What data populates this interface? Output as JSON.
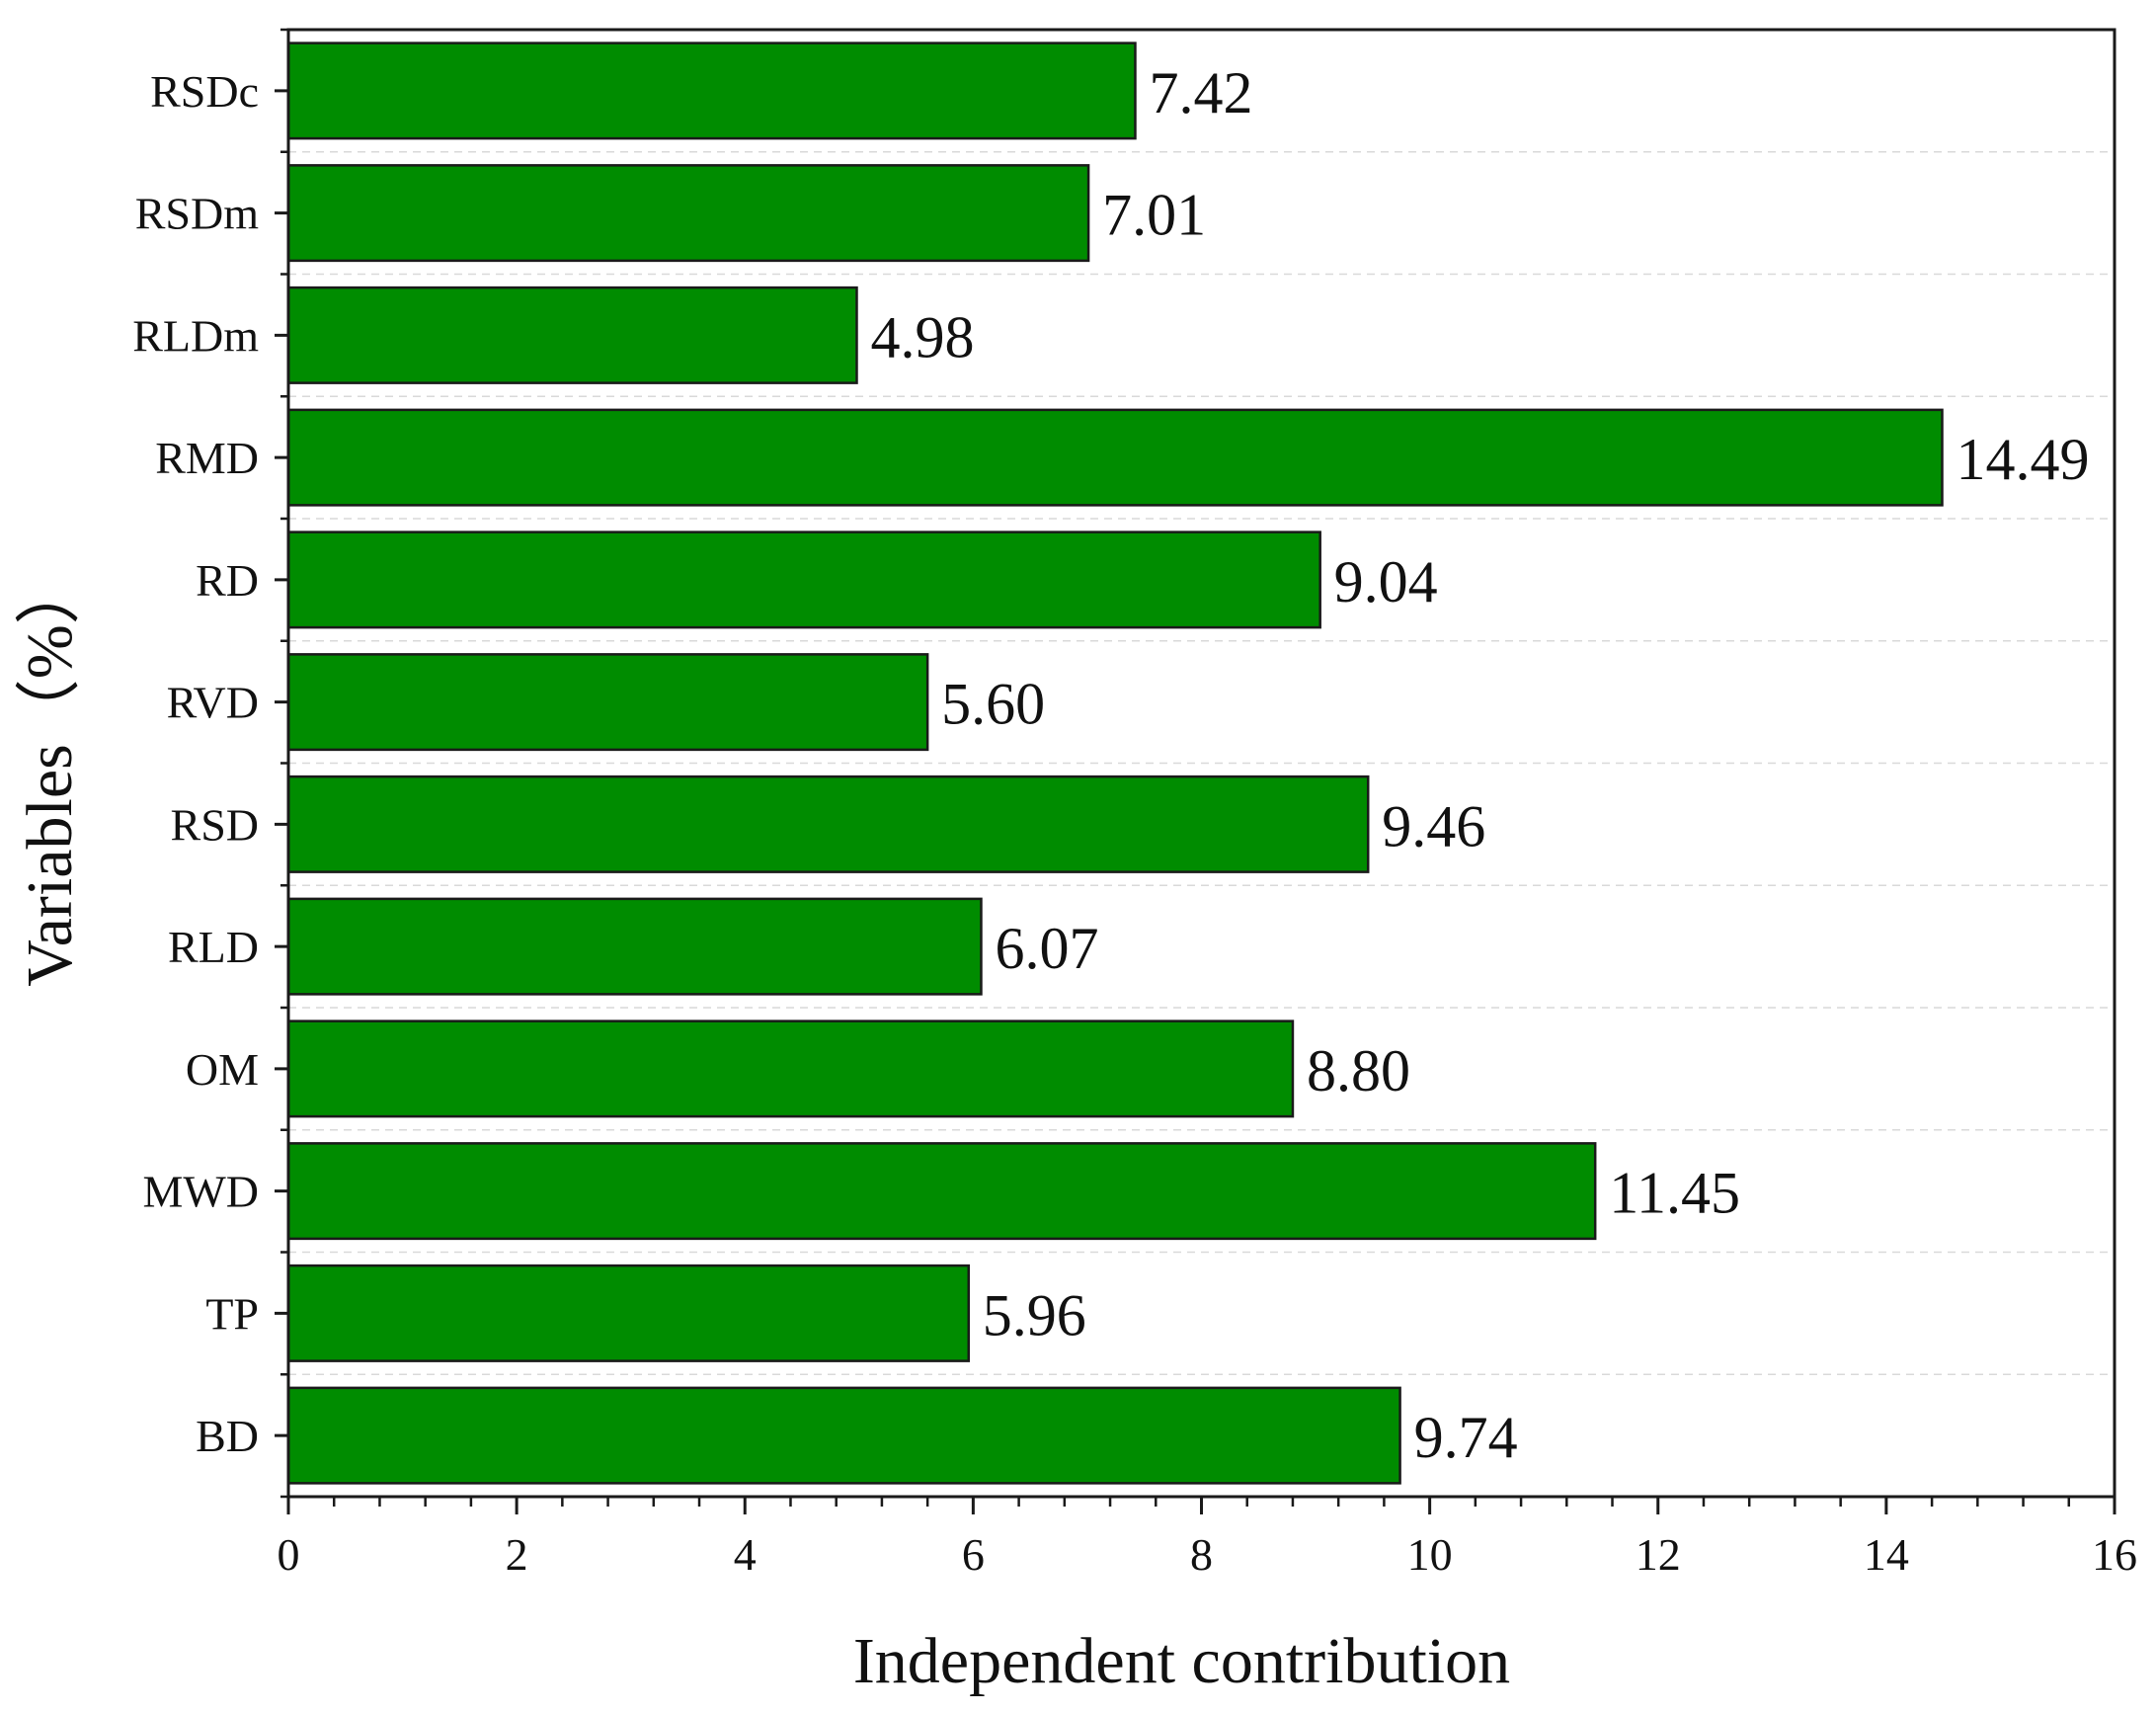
{
  "chart_data": {
    "type": "bar",
    "orientation": "horizontal",
    "categories": [
      "BD",
      "TP",
      "MWD",
      "OM",
      "RLD",
      "RSD",
      "RVD",
      "RD",
      "RMD",
      "RLDm",
      "RSDm",
      "RSDc"
    ],
    "values": [
      9.74,
      5.96,
      11.45,
      8.8,
      6.07,
      9.46,
      5.6,
      9.04,
      14.49,
      4.98,
      7.01,
      7.42
    ],
    "value_labels": [
      "9.74",
      "5.96",
      "11.45",
      "8.80",
      "6.07",
      "9.46",
      "5.60",
      "9.04",
      "14.49",
      "4.98",
      "7.01",
      "7.42"
    ],
    "title": "",
    "xlabel": "Independent contribution",
    "ylabel": "Variables（%）",
    "xlim": [
      0,
      16
    ],
    "xticks": [
      "0",
      "2",
      "4",
      "6",
      "8",
      "10",
      "12",
      "14",
      "16"
    ],
    "grid": "horizontal dashed lines between bars",
    "legend": "none",
    "colors": {
      "bar_fill": "#008c00",
      "bar_stroke": "#1a1a1a",
      "axis": "#1a1a1a",
      "grid": "#d9d9d9",
      "text": "#111111"
    }
  }
}
